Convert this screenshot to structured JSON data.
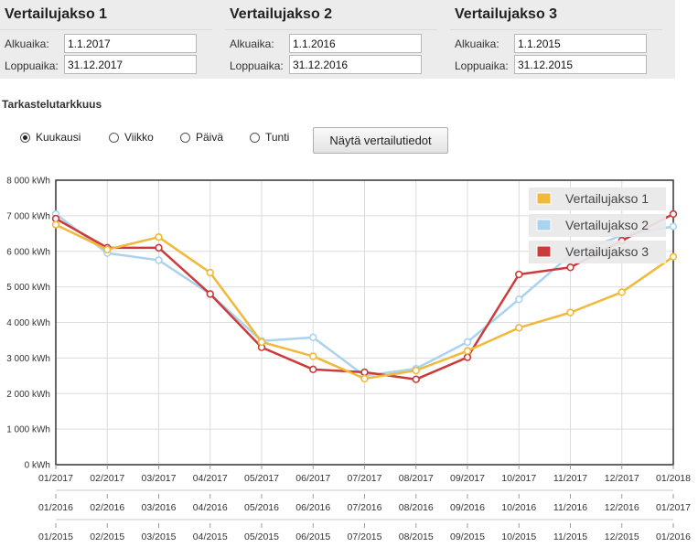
{
  "periods": [
    {
      "title": "Vertailujakso 1",
      "start_label": "Alkuaika:",
      "start_value": "1.1.2017",
      "end_label": "Loppuaika:",
      "end_value": "31.12.2017"
    },
    {
      "title": "Vertailujakso 2",
      "start_label": "Alkuaika:",
      "start_value": "1.1.2016",
      "end_label": "Loppuaika:",
      "end_value": "31.12.2016"
    },
    {
      "title": "Vertailujakso 3",
      "start_label": "Alkuaika:",
      "start_value": "1.1.2015",
      "end_label": "Loppuaika:",
      "end_value": "31.12.2015"
    }
  ],
  "resolution": {
    "title": "Tarkastelutarkkuus",
    "options": [
      {
        "label": "Kuukausi",
        "selected": true
      },
      {
        "label": "Viikko",
        "selected": false
      },
      {
        "label": "Päivä",
        "selected": false
      },
      {
        "label": "Tunti",
        "selected": false
      }
    ],
    "show_button": "Näytä vertailutiedot"
  },
  "chart_data": {
    "type": "line",
    "title": "",
    "ylabel": "",
    "ylim": [
      0,
      8000
    ],
    "y_ticks": [
      "0 kWh",
      "1 000 kWh",
      "2 000 kWh",
      "3 000 kWh",
      "4 000 kWh",
      "5 000 kWh",
      "6 000 kWh",
      "7 000 kWh",
      "8 000 kWh"
    ],
    "x_tick_rows": [
      [
        "01/2017",
        "02/2017",
        "03/2017",
        "04/2017",
        "05/2017",
        "06/2017",
        "07/2017",
        "08/2017",
        "09/2017",
        "10/2017",
        "11/2017",
        "12/2017",
        "01/2018"
      ],
      [
        "01/2016",
        "02/2016",
        "03/2016",
        "04/2016",
        "05/2016",
        "06/2016",
        "07/2016",
        "08/2016",
        "09/2016",
        "10/2016",
        "11/2016",
        "12/2016",
        "01/2017"
      ],
      [
        "01/2015",
        "02/2015",
        "03/2015",
        "04/2015",
        "05/2015",
        "06/2015",
        "07/2015",
        "08/2015",
        "09/2015",
        "10/2015",
        "11/2015",
        "12/2015",
        "01/2016"
      ]
    ],
    "grid": true,
    "legend_position": "top-right",
    "series": [
      {
        "name": "Vertailujakso 1",
        "color": "#f0b93a",
        "values": [
          6750,
          6050,
          6400,
          5400,
          3450,
          3050,
          2420,
          2650,
          3200,
          3850,
          4280,
          4850,
          5850
        ]
      },
      {
        "name": "Vertailujakso 2",
        "color": "#a9d3ee",
        "values": [
          7050,
          5950,
          5750,
          4800,
          3480,
          3580,
          2500,
          2700,
          3450,
          4650,
          5900,
          6450,
          6700
        ]
      },
      {
        "name": "Vertailujakso 3",
        "color": "#cc3b3b",
        "values": [
          6920,
          6100,
          6100,
          4800,
          3300,
          2680,
          2600,
          2400,
          3020,
          5350,
          5550,
          6300,
          7050
        ]
      }
    ]
  }
}
